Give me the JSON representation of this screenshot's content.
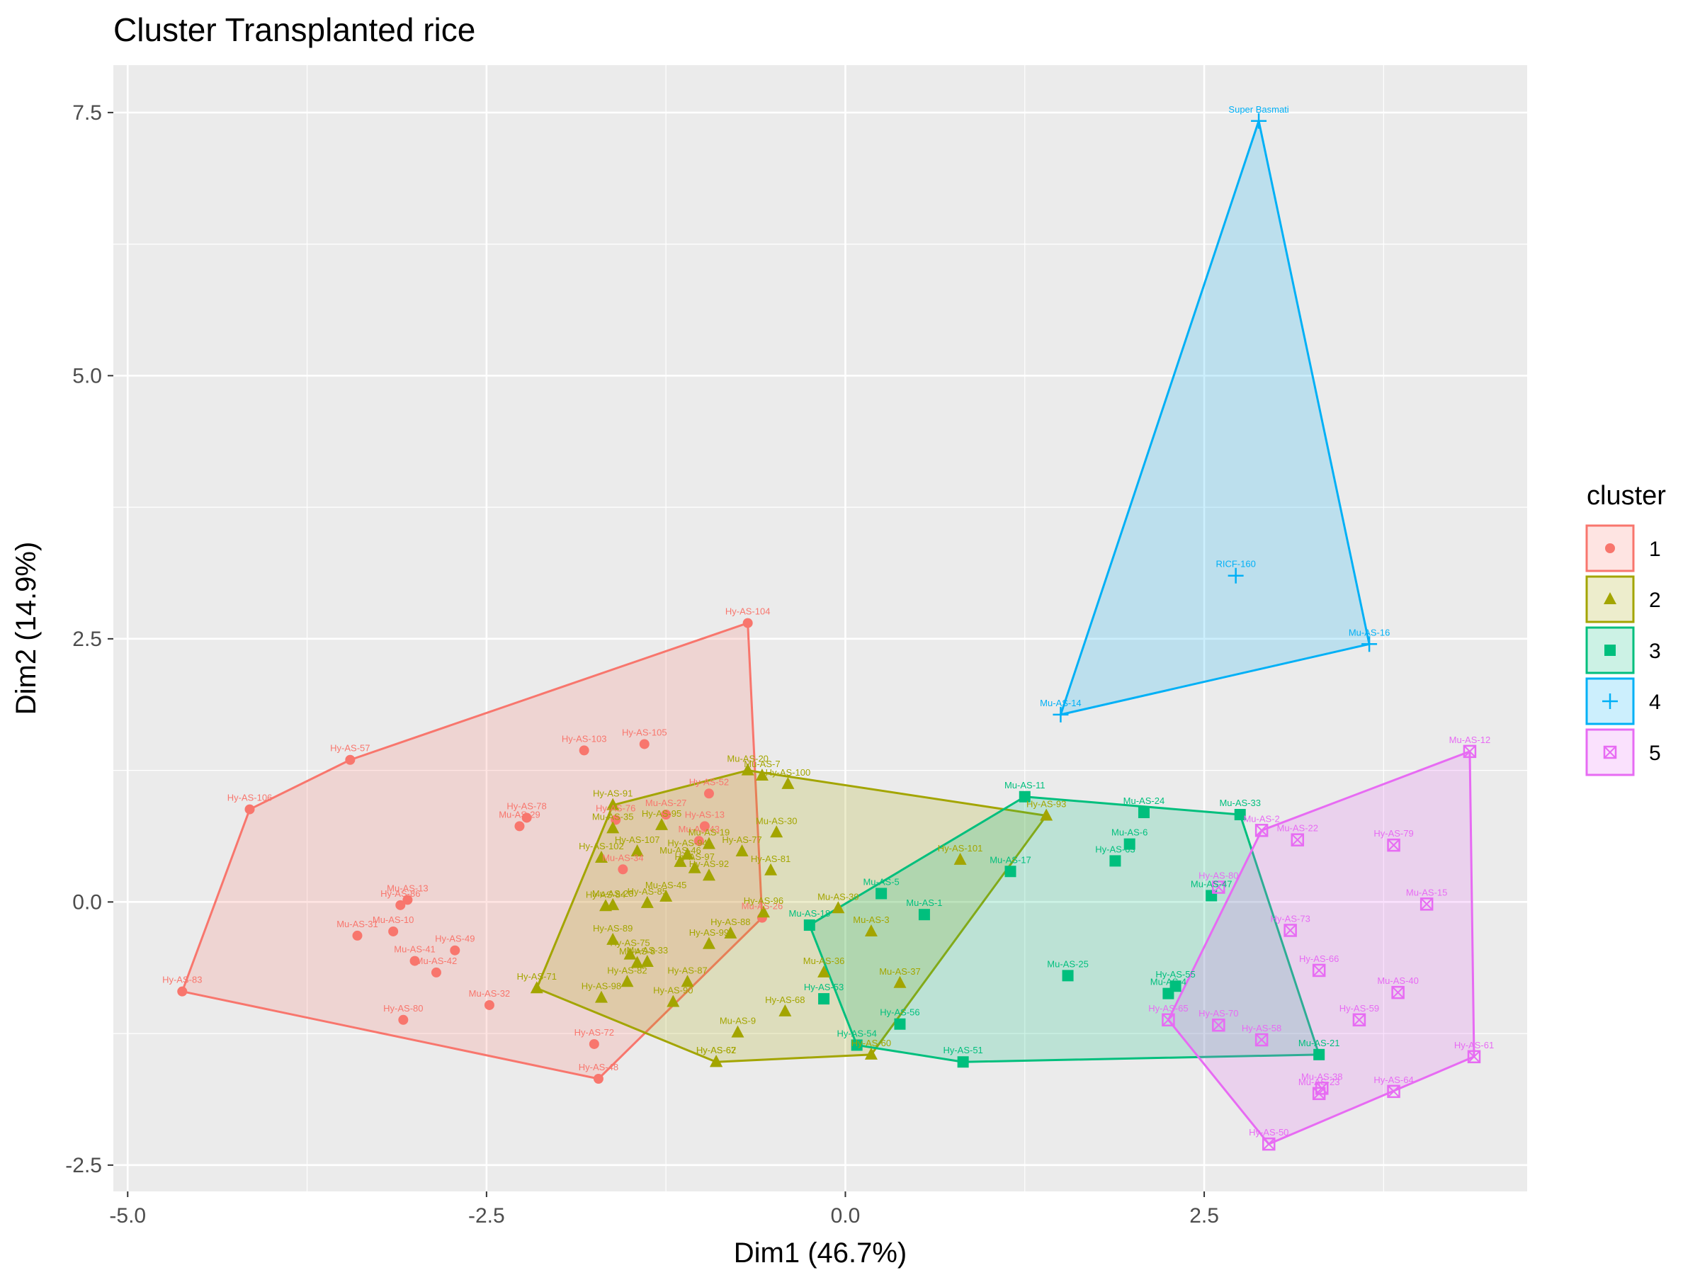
{
  "chart_data": {
    "type": "scatter",
    "title": "Cluster Transplanted rice",
    "xlabel": "Dim1 (46.7%)",
    "ylabel": "Dim2 (14.9%)",
    "xlim": [
      -5.1,
      4.75
    ],
    "ylim": [
      -2.75,
      7.95
    ],
    "xticks": [
      -5.0,
      -2.5,
      0.0,
      2.5
    ],
    "xtick_labels": [
      "-5.0",
      "-2.5",
      "0.0",
      "2.5"
    ],
    "yticks": [
      -2.5,
      0.0,
      2.5,
      5.0,
      7.5
    ],
    "ytick_labels": [
      "-2.5",
      "0.0",
      "2.5",
      "5.0",
      "7.5"
    ],
    "grid": true,
    "legend": {
      "title": "cluster",
      "position": "right",
      "entries": [
        "1",
        "2",
        "3",
        "4",
        "5"
      ]
    },
    "series": [
      {
        "name": "1",
        "color": "#F8766D",
        "shape": "circle",
        "hull": [
          [
            -4.62,
            -0.85
          ],
          [
            -4.15,
            0.88
          ],
          [
            -3.45,
            1.35
          ],
          [
            -0.68,
            2.65
          ],
          [
            -0.58,
            -0.15
          ],
          [
            -1.72,
            -1.68
          ]
        ],
        "points": [
          {
            "label": "Hy-AS-104",
            "x": -0.68,
            "y": 2.65
          },
          {
            "label": "Hy-AS-103",
            "x": -1.82,
            "y": 1.44
          },
          {
            "label": "Hy-AS-105",
            "x": -1.4,
            "y": 1.5
          },
          {
            "label": "Hy-AS-57",
            "x": -3.45,
            "y": 1.35
          },
          {
            "label": "Hy-AS-106",
            "x": -4.15,
            "y": 0.88
          },
          {
            "label": "Mu-AS-27",
            "x": -1.25,
            "y": 0.83
          },
          {
            "label": "Hy-AS-52",
            "x": -0.95,
            "y": 1.03
          },
          {
            "label": "Hy-AS-78",
            "x": -2.22,
            "y": 0.8
          },
          {
            "label": "Hy-AS-76",
            "x": -1.6,
            "y": 0.78
          },
          {
            "label": "Mu-AS-29",
            "x": -2.27,
            "y": 0.72
          },
          {
            "label": "Mu-AS-34",
            "x": -1.55,
            "y": 0.31
          },
          {
            "label": "Hy-AS-13",
            "x": -0.98,
            "y": 0.72
          },
          {
            "label": "Mu-AS-13",
            "x": -3.05,
            "y": 0.02
          },
          {
            "label": "Hy-AS-86",
            "x": -3.1,
            "y": -0.03
          },
          {
            "label": "Mu-AS-43",
            "x": -1.02,
            "y": 0.58
          },
          {
            "label": "Mu-AS-31",
            "x": -3.4,
            "y": -0.32
          },
          {
            "label": "Mu-AS-10",
            "x": -3.15,
            "y": -0.28
          },
          {
            "label": "Hy-AS-49",
            "x": -2.72,
            "y": -0.46
          },
          {
            "label": "Mu-AS-41",
            "x": -3.0,
            "y": -0.56
          },
          {
            "label": "Mu-AS-42",
            "x": -2.85,
            "y": -0.67
          },
          {
            "label": "Hy-AS-80",
            "x": -3.08,
            "y": -1.12
          },
          {
            "label": "Mu-AS-32",
            "x": -2.48,
            "y": -0.98
          },
          {
            "label": "Hy-AS-72",
            "x": -1.75,
            "y": -1.35
          },
          {
            "label": "Hy-AS-48",
            "x": -1.72,
            "y": -1.68
          },
          {
            "label": "Hy-AS-83",
            "x": -4.62,
            "y": -0.85
          },
          {
            "label": "Mu-AS-26",
            "x": -0.58,
            "y": -0.15
          }
        ]
      },
      {
        "name": "2",
        "color": "#A3A500",
        "shape": "triangle",
        "hull": [
          [
            -2.15,
            -0.82
          ],
          [
            -1.62,
            0.92
          ],
          [
            -0.68,
            1.25
          ],
          [
            1.4,
            0.82
          ],
          [
            0.18,
            -1.45
          ],
          [
            -0.9,
            -1.52
          ]
        ],
        "points": [
          {
            "label": "Mu-AS-20",
            "x": -0.68,
            "y": 1.25
          },
          {
            "label": "Mu-AS-7",
            "x": -0.58,
            "y": 1.2
          },
          {
            "label": "Hy-AS-100",
            "x": -0.4,
            "y": 1.12
          },
          {
            "label": "Hy-AS-91",
            "x": -1.62,
            "y": 0.92
          },
          {
            "label": "Hy-AS-95",
            "x": -1.28,
            "y": 0.73
          },
          {
            "label": "Mu-AS-35",
            "x": -1.62,
            "y": 0.7
          },
          {
            "label": "Mu-AS-30",
            "x": -0.48,
            "y": 0.66
          },
          {
            "label": "Mu-AS-19",
            "x": -0.95,
            "y": 0.55
          },
          {
            "label": "Hy-AS-77",
            "x": -0.72,
            "y": 0.48
          },
          {
            "label": "Hy-AS-81",
            "x": -0.52,
            "y": 0.3
          },
          {
            "label": "Hy-AS-107",
            "x": -1.45,
            "y": 0.48
          },
          {
            "label": "Hy-AS-102",
            "x": -1.7,
            "y": 0.42
          },
          {
            "label": "Hy-AS-94",
            "x": -1.1,
            "y": 0.45
          },
          {
            "label": "Mu-AS-46",
            "x": -1.15,
            "y": 0.38
          },
          {
            "label": "Hy-AS-97",
            "x": -1.05,
            "y": 0.32
          },
          {
            "label": "Hy-AS-101",
            "x": 0.8,
            "y": 0.4
          },
          {
            "label": "Hy-AS-93",
            "x": 1.4,
            "y": 0.82
          },
          {
            "label": "Hy-AS-92",
            "x": -0.95,
            "y": 0.25
          },
          {
            "label": "Mu-AS-45",
            "x": -1.25,
            "y": 0.05
          },
          {
            "label": "Hy-AS-84",
            "x": -1.67,
            "y": -0.04
          },
          {
            "label": "Mu-AS-28",
            "x": -1.62,
            "y": -0.03
          },
          {
            "label": "Hy-AS-85",
            "x": -1.38,
            "y": -0.01
          },
          {
            "label": "Hy-AS-75",
            "x": -1.5,
            "y": -0.5
          },
          {
            "label": "Mu-AS-8",
            "x": -1.45,
            "y": -0.58
          },
          {
            "label": "Mu-AS-39",
            "x": -0.05,
            "y": -0.06
          },
          {
            "label": "Hy-AS-99",
            "x": -0.95,
            "y": -0.4
          },
          {
            "label": "Mu-AS-3",
            "x": 0.18,
            "y": -0.28
          },
          {
            "label": "Mu-AS-33",
            "x": -1.38,
            "y": -0.57
          },
          {
            "label": "Hy-AS-96",
            "x": -0.57,
            "y": -0.1
          },
          {
            "label": "Hy-AS-71",
            "x": -2.15,
            "y": -0.82
          },
          {
            "label": "Hy-AS-98",
            "x": -1.7,
            "y": -0.91
          },
          {
            "label": "Hy-AS-82",
            "x": -1.52,
            "y": -0.76
          },
          {
            "label": "Hy-AS-87",
            "x": -1.1,
            "y": -0.76
          },
          {
            "label": "Mu-AS-36",
            "x": -0.15,
            "y": -0.67
          },
          {
            "label": "Mu-AS-37",
            "x": 0.38,
            "y": -0.77
          },
          {
            "label": "Hy-AS-68",
            "x": -0.42,
            "y": -1.04
          },
          {
            "label": "Mu-AS-9",
            "x": -0.75,
            "y": -1.24
          },
          {
            "label": "Hy-AS-88",
            "x": -0.8,
            "y": -0.3
          },
          {
            "label": "Hy-AS-89",
            "x": -1.62,
            "y": -0.36
          },
          {
            "label": "Hy-AS-90",
            "x": -1.2,
            "y": -0.95
          },
          {
            "label": "Hy-AS-60",
            "x": 0.18,
            "y": -1.45
          },
          {
            "label": "Hy-AS-62",
            "x": -0.9,
            "y": -1.52
          },
          {
            "label": "Hy-AS-67",
            "x": -0.9,
            "y": -1.52
          }
        ]
      },
      {
        "name": "3",
        "color": "#00BF7D",
        "shape": "square",
        "hull": [
          [
            -0.25,
            -0.22
          ],
          [
            1.25,
            1.0
          ],
          [
            2.75,
            0.83
          ],
          [
            3.3,
            -1.45
          ],
          [
            0.82,
            -1.52
          ],
          [
            0.08,
            -1.36
          ]
        ],
        "points": [
          {
            "label": "Mu-AS-11",
            "x": 1.25,
            "y": 1.0
          },
          {
            "label": "Mu-AS-24",
            "x": 2.08,
            "y": 0.85
          },
          {
            "label": "Mu-AS-33",
            "x": 2.75,
            "y": 0.83
          },
          {
            "label": "Mu-AS-6",
            "x": 1.98,
            "y": 0.55
          },
          {
            "label": "Hy-AS-63",
            "x": 1.88,
            "y": 0.39
          },
          {
            "label": "Mu-AS-17",
            "x": 1.15,
            "y": 0.29
          },
          {
            "label": "Mu-AS-5",
            "x": 0.25,
            "y": 0.08
          },
          {
            "label": "Mu-AS-1",
            "x": 0.55,
            "y": -0.12
          },
          {
            "label": "Mu-AS-47",
            "x": 2.55,
            "y": 0.06
          },
          {
            "label": "Mu-AS-18",
            "x": -0.25,
            "y": -0.22
          },
          {
            "label": "Mu-AS-25",
            "x": 1.55,
            "y": -0.7
          },
          {
            "label": "Hy-AS-55",
            "x": 2.3,
            "y": -0.8
          },
          {
            "label": "Mu-AS-4",
            "x": 2.25,
            "y": -0.87
          },
          {
            "label": "Hy-AS-53",
            "x": -0.15,
            "y": -0.92
          },
          {
            "label": "Hy-AS-54",
            "x": 0.08,
            "y": -1.36
          },
          {
            "label": "Hy-AS-56",
            "x": 0.38,
            "y": -1.16
          },
          {
            "label": "Hy-AS-51",
            "x": 0.82,
            "y": -1.52
          },
          {
            "label": "Mu-AS-21",
            "x": 3.3,
            "y": -1.45
          }
        ]
      },
      {
        "name": "4",
        "color": "#00B0F6",
        "shape": "cross",
        "hull": [
          [
            1.5,
            1.78
          ],
          [
            2.88,
            7.42
          ],
          [
            3.65,
            2.45
          ]
        ],
        "points": [
          {
            "label": "Super Basmati",
            "x": 2.88,
            "y": 7.42
          },
          {
            "label": "RICF-160",
            "x": 2.72,
            "y": 3.1
          },
          {
            "label": "Mu-AS-16",
            "x": 3.65,
            "y": 2.45
          },
          {
            "label": "Mu-AS-14",
            "x": 1.5,
            "y": 1.78
          }
        ]
      },
      {
        "name": "5",
        "color": "#E76BF3",
        "shape": "square-x",
        "hull": [
          [
            2.25,
            -1.12
          ],
          [
            2.9,
            0.68
          ],
          [
            4.35,
            1.43
          ],
          [
            4.38,
            -1.47
          ],
          [
            2.95,
            -2.3
          ]
        ],
        "points": [
          {
            "label": "Mu-AS-12",
            "x": 4.35,
            "y": 1.43
          },
          {
            "label": "Mu-AS-2",
            "x": 2.9,
            "y": 0.68
          },
          {
            "label": "Mu-AS-22",
            "x": 3.15,
            "y": 0.59
          },
          {
            "label": "Hy-AS-79",
            "x": 3.82,
            "y": 0.54
          },
          {
            "label": "Hy-AS-80",
            "x": 2.6,
            "y": 0.14
          },
          {
            "label": "Mu-AS-15",
            "x": 4.05,
            "y": -0.02
          },
          {
            "label": "Hy-AS-73",
            "x": 3.1,
            "y": -0.27
          },
          {
            "label": "Hy-AS-66",
            "x": 3.3,
            "y": -0.65
          },
          {
            "label": "Mu-AS-40",
            "x": 3.85,
            "y": -0.86
          },
          {
            "label": "Hy-AS-59",
            "x": 3.58,
            "y": -1.12
          },
          {
            "label": "Hy-AS-70",
            "x": 2.6,
            "y": -1.17
          },
          {
            "label": "Hy-AS-65",
            "x": 2.25,
            "y": -1.12
          },
          {
            "label": "Hy-AS-58",
            "x": 2.9,
            "y": -1.31
          },
          {
            "label": "Hy-AS-61",
            "x": 4.38,
            "y": -1.47
          },
          {
            "label": "Mu-AS-38",
            "x": 3.32,
            "y": -1.77
          },
          {
            "label": "Hy-AS-64",
            "x": 3.82,
            "y": -1.8
          },
          {
            "label": "Mu-AS-23",
            "x": 3.3,
            "y": -1.82
          },
          {
            "label": "Hy-AS-50",
            "x": 2.95,
            "y": -2.3
          }
        ]
      }
    ]
  }
}
